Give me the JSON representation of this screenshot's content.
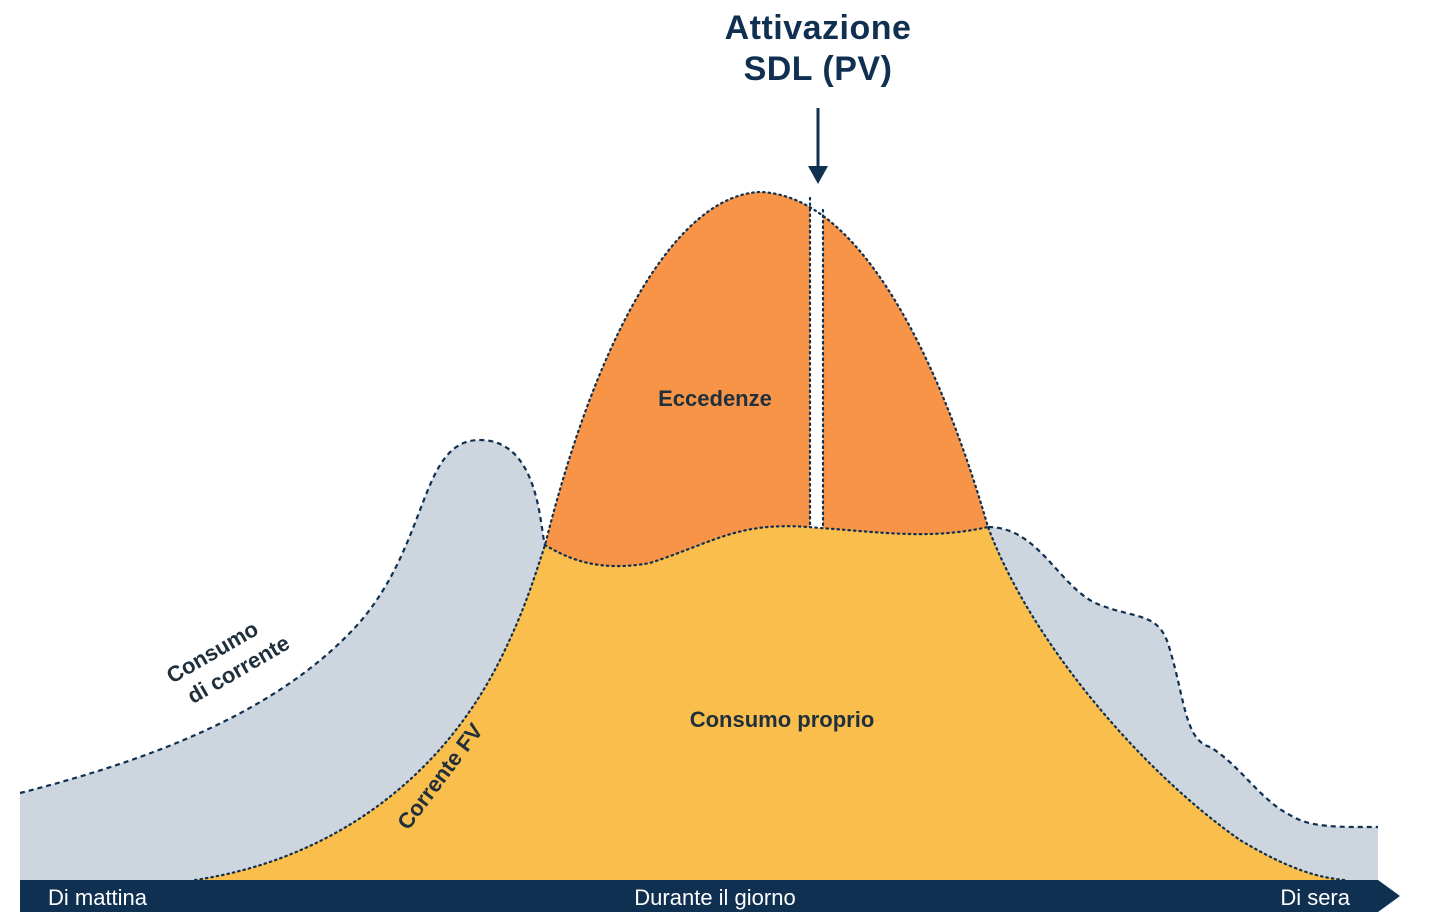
{
  "title": {
    "line1": "Attivazione",
    "line2": "SDL (PV)"
  },
  "regions": {
    "excess": "Eccedenze",
    "self_consumption": "Consumo proprio"
  },
  "curves": {
    "consumption_line1": "Consumo",
    "consumption_line2": "di corrente",
    "pv_current": "Corrente FV"
  },
  "timeline": {
    "morning": "Di mattina",
    "day": "Durante il giorno",
    "evening": "Di sera"
  },
  "colors": {
    "navy": "#0f3050",
    "consumption_fill": "#cdd5de",
    "self_consumption_fill": "#f9be4c",
    "excess_fill": "#f79447",
    "axis_text": "#ffffff",
    "label_text": "#1f2f3c"
  }
}
